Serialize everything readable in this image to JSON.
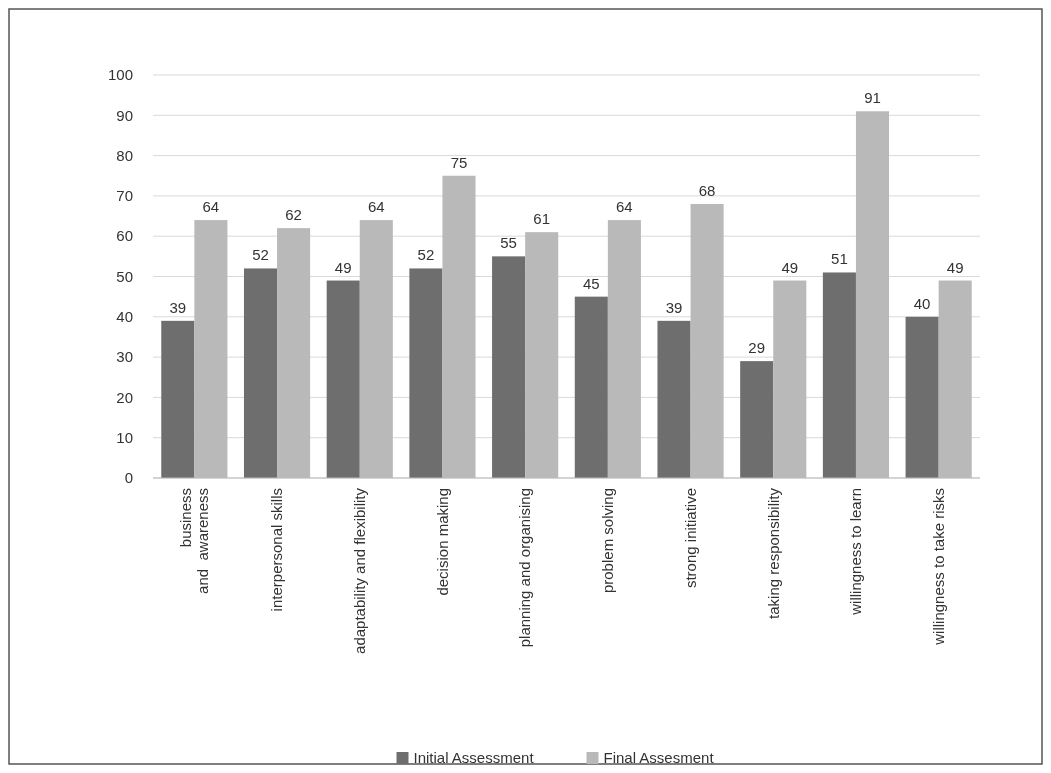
{
  "chart_data": {
    "type": "bar",
    "categories": [
      "business\nand  awareness",
      "interpersonal skills",
      "adaptability and flexibility",
      "decision making",
      "planning and organising",
      "problem solving",
      "strong initiative",
      "taking responsibility",
      "willingness to learn",
      "willingness to take risks"
    ],
    "series": [
      {
        "name": "Initial Assessment",
        "color": "#6e6e6e",
        "values": [
          39,
          52,
          49,
          52,
          55,
          45,
          39,
          29,
          51,
          40
        ]
      },
      {
        "name": "Final Assesment",
        "color": "#b9b9b9",
        "values": [
          64,
          62,
          64,
          75,
          61,
          64,
          68,
          49,
          91,
          49
        ]
      }
    ],
    "ylim": [
      0,
      100
    ],
    "yticks": [
      0,
      10,
      20,
      30,
      40,
      50,
      60,
      70,
      80,
      90,
      100
    ],
    "grid": "y",
    "legend": "bottom",
    "data_labels": true
  }
}
